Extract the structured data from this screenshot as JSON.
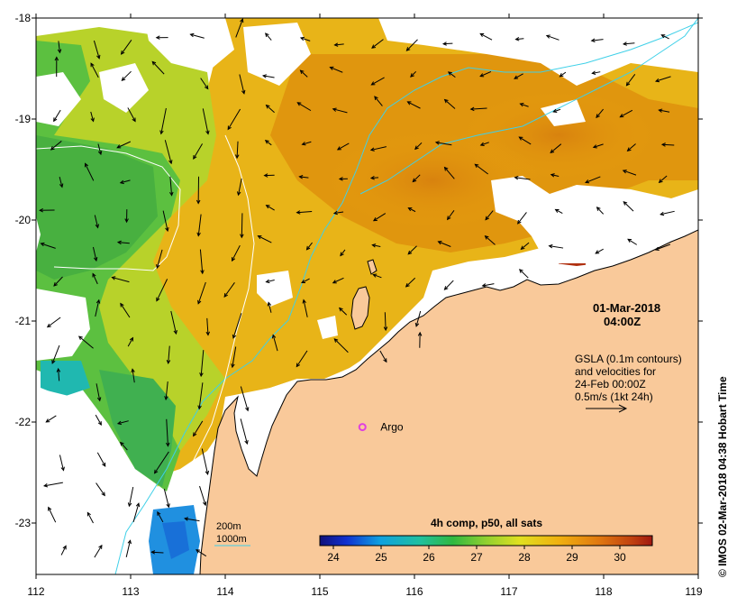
{
  "map": {
    "date_line1": "01-Mar-2018",
    "date_line2": "04:00Z",
    "gsla_line1": "GSLA (0.1m contours)",
    "gsla_line2": "and velocities for",
    "gsla_line3": "24-Feb 00:00Z",
    "scale_text": "0.5m/s (1kt 24h)",
    "argo_label": "Argo",
    "argo_lon": 115.45,
    "argo_lat": -22.05,
    "legend_200": "200m",
    "legend_1000": "1000m",
    "colorbar_title": "4h comp, p50, all sats",
    "credit": "© IMOS 02-Mar-2018 04:38 Hobart Time",
    "x_ticks": [
      "112",
      "113",
      "114",
      "115",
      "116",
      "117",
      "118",
      "119"
    ],
    "y_ticks": [
      "-18",
      "-19",
      "-20",
      "-21",
      "-22",
      "-23"
    ],
    "colorbar_ticks": [
      "24",
      "25",
      "26",
      "27",
      "28",
      "29",
      "30"
    ],
    "colors": {
      "land": "#f9c99a",
      "ocean_white": "#ffffff",
      "contour_200": "#3fd0e8",
      "contour_1000": "#ffffff",
      "argo": "#e040e0"
    }
  }
}
